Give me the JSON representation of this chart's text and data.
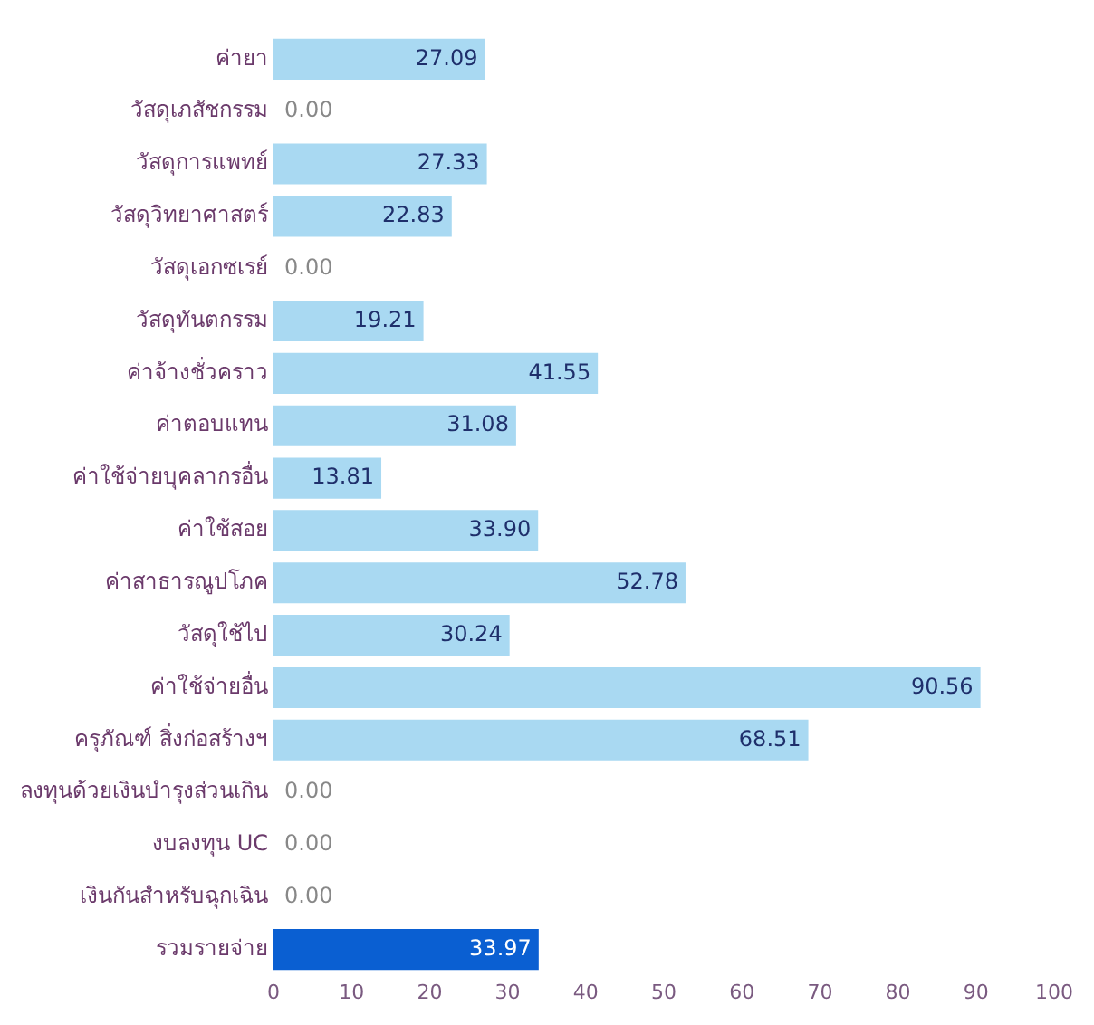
{
  "chart_data": {
    "type": "bar",
    "orientation": "horizontal",
    "categories": [
      "ค่ายา",
      "วัสดุเภสัชกรรม",
      "วัสดุการแพทย์",
      "วัสดุวิทยาศาสตร์",
      "วัสดุเอกซเรย์",
      "วัสดุทันตกรรม",
      "ค่าจ้างชั่วคราว",
      "ค่าตอบแทน",
      "ค่าใช้จ่ายบุคลากรอื่น",
      "ค่าใช้สอย",
      "ค่าสาธารณูปโภค",
      "วัสดุใช้ไป",
      "ค่าใช้จ่ายอื่น",
      "ครุภัณฑ์ สิ่งก่อสร้างฯ",
      "ลงทุนด้วยเงินบำรุงส่วนเกิน",
      "งบลงทุน UC",
      "เงินกันสำหรับฉุกเฉิน",
      "รวมรายจ่าย"
    ],
    "values": [
      27.09,
      0,
      27.33,
      22.83,
      0,
      19.21,
      41.55,
      31.08,
      13.81,
      33.9,
      52.78,
      30.24,
      90.56,
      68.51,
      0,
      0,
      0,
      33.97
    ],
    "value_labels": [
      "27.09",
      "0.00",
      "27.33",
      "22.83",
      "0.00",
      "19.21",
      "41.55",
      "31.08",
      "13.81",
      "33.90",
      "52.78",
      "30.24",
      "90.56",
      "68.51",
      "0.00",
      "0.00",
      "0.00",
      "33.97"
    ],
    "colors": [
      "#a9d9f2",
      "#a9d9f2",
      "#a9d9f2",
      "#a9d9f2",
      "#a9d9f2",
      "#a9d9f2",
      "#a9d9f2",
      "#a9d9f2",
      "#a9d9f2",
      "#a9d9f2",
      "#a9d9f2",
      "#a9d9f2",
      "#a9d9f2",
      "#a9d9f2",
      "#a9d9f2",
      "#a9d9f2",
      "#a9d9f2",
      "#0a5fd2"
    ],
    "xlim": [
      0,
      100
    ],
    "xticks": [
      0,
      10,
      20,
      30,
      40,
      50,
      60,
      70,
      80,
      90,
      100
    ],
    "grid": false,
    "legend": false
  }
}
